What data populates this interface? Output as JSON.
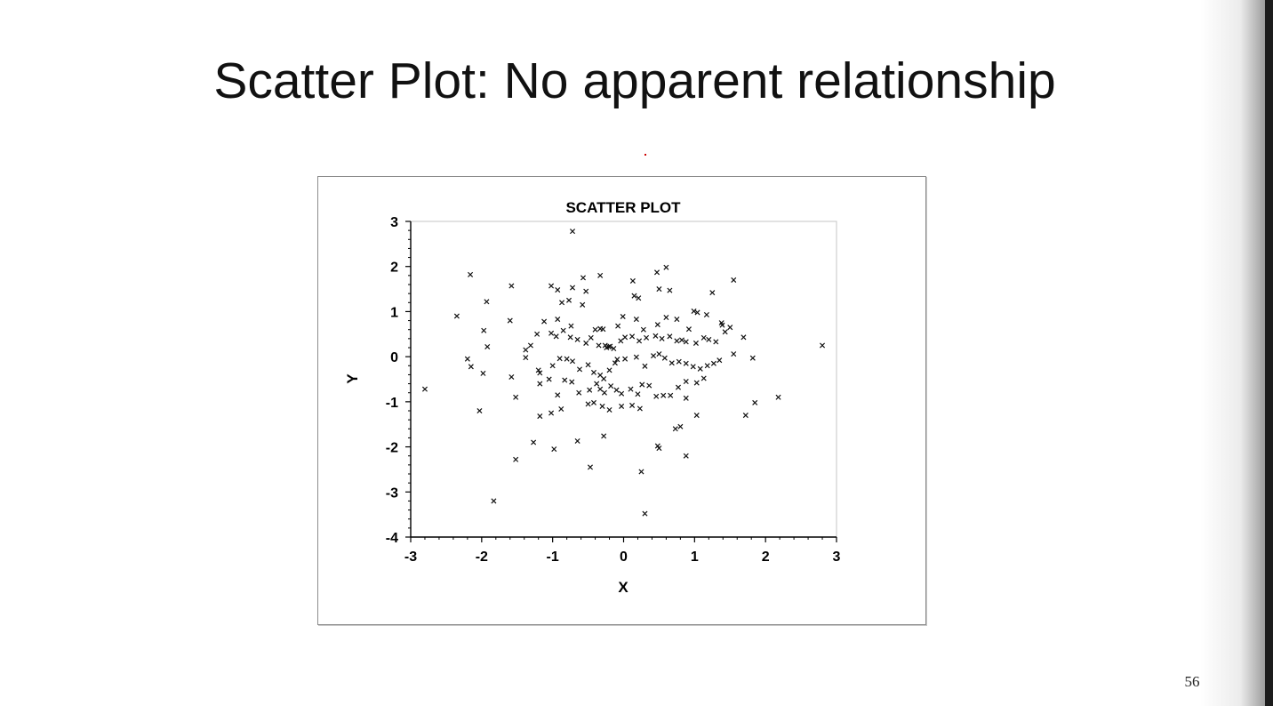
{
  "slide": {
    "title": "Scatter Plot: No apparent relationship",
    "page_number": "56"
  },
  "chart_data": {
    "type": "scatter",
    "title": "SCATTER PLOT",
    "xlabel": "X",
    "ylabel": "Y",
    "xlim": [
      -3,
      3
    ],
    "ylim": [
      -4,
      3
    ],
    "xticks": [
      -3,
      -2,
      -1,
      0,
      1,
      2,
      3
    ],
    "yticks": [
      3,
      2,
      1,
      0,
      -1,
      -2,
      -3,
      -4
    ],
    "marker": "x",
    "grid": false,
    "points": [
      [
        -0.72,
        2.78
      ],
      [
        -2.16,
        1.82
      ],
      [
        -1.58,
        1.57
      ],
      [
        -1.02,
        1.57
      ],
      [
        -0.93,
        1.48
      ],
      [
        -0.72,
        1.53
      ],
      [
        -0.57,
        1.75
      ],
      [
        -0.53,
        1.45
      ],
      [
        -0.33,
        1.8
      ],
      [
        -0.77,
        1.25
      ],
      [
        -0.87,
        1.2
      ],
      [
        -0.58,
        1.15
      ],
      [
        0.13,
        1.68
      ],
      [
        0.47,
        1.87
      ],
      [
        0.6,
        1.98
      ],
      [
        0.5,
        1.5
      ],
      [
        0.65,
        1.47
      ],
      [
        1.25,
        1.42
      ],
      [
        1.55,
        1.7
      ],
      [
        0.15,
        1.35
      ],
      [
        0.21,
        1.3
      ],
      [
        -2.35,
        0.9
      ],
      [
        -1.93,
        1.22
      ],
      [
        -1.6,
        0.8
      ],
      [
        -1.12,
        0.78
      ],
      [
        -0.93,
        0.83
      ],
      [
        -0.74,
        0.68
      ],
      [
        -0.4,
        0.6
      ],
      [
        -0.33,
        0.62
      ],
      [
        -0.29,
        0.61
      ],
      [
        -0.08,
        0.68
      ],
      [
        -0.04,
        0.35
      ],
      [
        -0.01,
        0.89
      ],
      [
        0.18,
        0.83
      ],
      [
        0.28,
        0.6
      ],
      [
        0.48,
        0.71
      ],
      [
        0.6,
        0.87
      ],
      [
        0.75,
        0.83
      ],
      [
        0.92,
        0.61
      ],
      [
        0.99,
        1.01
      ],
      [
        1.04,
        0.98
      ],
      [
        1.17,
        0.93
      ],
      [
        1.38,
        0.75
      ],
      [
        1.39,
        0.7
      ],
      [
        1.5,
        0.65
      ],
      [
        1.69,
        0.43
      ],
      [
        -1.97,
        0.58
      ],
      [
        -1.92,
        0.22
      ],
      [
        -1.38,
        0.15
      ],
      [
        -1.31,
        0.25
      ],
      [
        -1.22,
        0.5
      ],
      [
        -1.02,
        0.52
      ],
      [
        -0.95,
        0.45
      ],
      [
        -0.85,
        0.58
      ],
      [
        -0.75,
        0.43
      ],
      [
        -0.65,
        0.38
      ],
      [
        -0.53,
        0.3
      ],
      [
        -0.46,
        0.42
      ],
      [
        -0.35,
        0.25
      ],
      [
        -0.26,
        0.25
      ],
      [
        -0.24,
        0.2
      ],
      [
        -0.21,
        0.22
      ],
      [
        -0.19,
        0.23
      ],
      [
        -0.14,
        0.18
      ],
      [
        0.02,
        0.43
      ],
      [
        0.12,
        0.45
      ],
      [
        0.22,
        0.35
      ],
      [
        0.32,
        0.42
      ],
      [
        0.45,
        0.46
      ],
      [
        0.54,
        0.4
      ],
      [
        0.65,
        0.45
      ],
      [
        0.75,
        0.35
      ],
      [
        0.82,
        0.37
      ],
      [
        0.88,
        0.33
      ],
      [
        1.02,
        0.3
      ],
      [
        1.13,
        0.42
      ],
      [
        1.2,
        0.38
      ],
      [
        1.3,
        0.33
      ],
      [
        1.43,
        0.55
      ],
      [
        1.55,
        0.06
      ],
      [
        1.82,
        -0.03
      ],
      [
        2.8,
        0.25
      ],
      [
        -2.2,
        -0.05
      ],
      [
        -2.15,
        -0.22
      ],
      [
        -1.98,
        -0.37
      ],
      [
        -1.38,
        -0.02
      ],
      [
        -1.2,
        -0.3
      ],
      [
        -1.18,
        -0.36
      ],
      [
        -1.0,
        -0.2
      ],
      [
        -0.9,
        -0.04
      ],
      [
        -0.8,
        -0.05
      ],
      [
        -0.72,
        -0.1
      ],
      [
        -0.62,
        -0.28
      ],
      [
        -0.5,
        -0.18
      ],
      [
        -0.42,
        -0.35
      ],
      [
        -0.33,
        -0.41
      ],
      [
        -0.28,
        -0.49
      ],
      [
        -0.2,
        -0.3
      ],
      [
        -0.12,
        -0.14
      ],
      [
        -0.09,
        -0.06
      ],
      [
        0.02,
        -0.05
      ],
      [
        0.18,
        -0.01
      ],
      [
        0.3,
        -0.21
      ],
      [
        0.42,
        0.02
      ],
      [
        0.5,
        0.06
      ],
      [
        0.58,
        -0.03
      ],
      [
        0.68,
        -0.14
      ],
      [
        0.78,
        -0.11
      ],
      [
        0.88,
        -0.15
      ],
      [
        0.98,
        -0.22
      ],
      [
        1.08,
        -0.27
      ],
      [
        1.18,
        -0.2
      ],
      [
        1.27,
        -0.15
      ],
      [
        1.35,
        -0.08
      ],
      [
        -1.58,
        -0.45
      ],
      [
        -1.52,
        -0.9
      ],
      [
        -1.18,
        -0.6
      ],
      [
        -1.05,
        -0.5
      ],
      [
        -0.93,
        -0.85
      ],
      [
        -0.83,
        -0.52
      ],
      [
        -0.73,
        -0.56
      ],
      [
        -0.63,
        -0.8
      ],
      [
        -0.48,
        -0.74
      ],
      [
        -0.38,
        -0.6
      ],
      [
        -0.33,
        -0.72
      ],
      [
        -0.27,
        -0.8
      ],
      [
        -0.18,
        -0.65
      ],
      [
        -0.1,
        -0.74
      ],
      [
        -0.03,
        -0.82
      ],
      [
        0.1,
        -0.72
      ],
      [
        0.2,
        -0.83
      ],
      [
        0.26,
        -0.62
      ],
      [
        0.36,
        -0.64
      ],
      [
        0.46,
        -0.88
      ],
      [
        0.56,
        -0.86
      ],
      [
        0.66,
        -0.86
      ],
      [
        0.77,
        -0.68
      ],
      [
        0.88,
        -0.55
      ],
      [
        1.03,
        -0.58
      ],
      [
        1.13,
        -0.48
      ],
      [
        2.18,
        -0.9
      ],
      [
        -2.03,
        -1.2
      ],
      [
        -1.18,
        -1.32
      ],
      [
        -1.02,
        -1.25
      ],
      [
        -0.88,
        -1.16
      ],
      [
        -0.5,
        -1.05
      ],
      [
        -0.42,
        -1.02
      ],
      [
        -0.3,
        -1.1
      ],
      [
        -0.2,
        -1.18
      ],
      [
        -0.03,
        -1.1
      ],
      [
        0.12,
        -1.08
      ],
      [
        0.23,
        -1.15
      ],
      [
        0.88,
        -0.92
      ],
      [
        1.03,
        -1.3
      ],
      [
        1.72,
        -1.3
      ],
      [
        1.85,
        -1.02
      ],
      [
        0.73,
        -1.6
      ],
      [
        0.8,
        -1.55
      ],
      [
        -1.27,
        -1.9
      ],
      [
        -0.98,
        -2.05
      ],
      [
        -0.65,
        -1.87
      ],
      [
        -0.28,
        -1.76
      ],
      [
        0.48,
        -1.98
      ],
      [
        0.5,
        -2.03
      ],
      [
        0.88,
        -2.2
      ],
      [
        -1.52,
        -2.28
      ],
      [
        -0.47,
        -2.45
      ],
      [
        0.25,
        -2.55
      ],
      [
        -1.83,
        -3.2
      ],
      [
        0.3,
        -3.48
      ],
      [
        -2.8,
        -0.72
      ]
    ]
  }
}
